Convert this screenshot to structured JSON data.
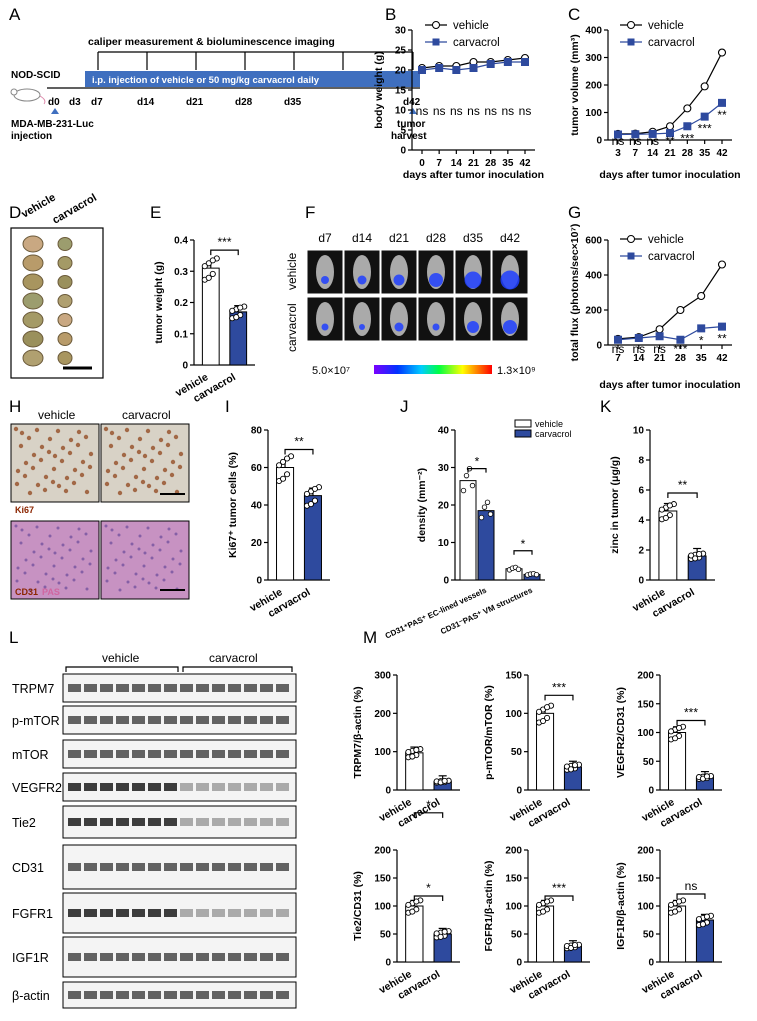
{
  "colors": {
    "vehicle": "#ffffff",
    "carvacrol": "#2e4a9e",
    "edge": "#000000",
    "schedule_bar": "#3f6fbf"
  },
  "panel_labels": [
    "A",
    "B",
    "C",
    "D",
    "E",
    "F",
    "G",
    "H",
    "I",
    "J",
    "K",
    "L",
    "M"
  ],
  "schedule": {
    "mouse": "NOD-SCID",
    "days": [
      "d0",
      "d3",
      "d7",
      "d14",
      "d21",
      "d28",
      "d35",
      "d42"
    ],
    "top_text": "caliper measurement & bioluminescence imaging",
    "bar_text": "i.p. injection of vehicle or 50 mg/kg carvacrol daily",
    "start_text": "MDA-MB-231-Luc",
    "start_text2": "injection",
    "end_text": "tumor",
    "end_text2": "harvest"
  },
  "photo_D": {
    "left_label": "vehicle",
    "right_label": "carvacrol"
  },
  "imaging_F": {
    "days": [
      "d7",
      "d14",
      "d21",
      "d28",
      "d35",
      "d42"
    ],
    "row1": "vehicle",
    "row2": "carvacrol",
    "scale_min": "5.0×10⁷",
    "scale_max": "1.3×10⁹"
  },
  "histology_H": {
    "left": "vehicle",
    "right": "carvacrol",
    "stain1": "Ki67",
    "stain2a": "CD31",
    "stain2b": "PAS"
  },
  "blot_L": {
    "group1": "vehicle",
    "group2": "carvacrol",
    "rows": [
      "TRPM7",
      "p-mTOR",
      "mTOR",
      "VEGFR2",
      "Tie2",
      "CD31",
      "FGFR1",
      "IGF1R",
      "β-actin"
    ]
  },
  "chart_data": [
    {
      "id": "B",
      "type": "line",
      "ylabel": "body weight (g)",
      "xlabel": "days after tumor inoculation",
      "x": [
        0,
        7,
        14,
        21,
        28,
        35,
        42
      ],
      "ylim": [
        0,
        30
      ],
      "yticks": [
        0,
        5,
        10,
        15,
        20,
        25,
        30
      ],
      "series": [
        {
          "name": "vehicle",
          "values": [
            20.5,
            21,
            21,
            22,
            22,
            22.5,
            23
          ]
        },
        {
          "name": "carvacrol",
          "values": [
            20,
            20.5,
            20,
            20.5,
            21.5,
            22,
            22
          ]
        }
      ],
      "annotations": [
        "ns",
        "ns",
        "ns",
        "ns",
        "ns",
        "ns",
        "ns"
      ]
    },
    {
      "id": "C",
      "type": "line",
      "ylabel": "tumor volume (mm³)",
      "xlabel": "days after tumor inoculation",
      "x": [
        3,
        7,
        14,
        21,
        28,
        35,
        42
      ],
      "ylim": [
        0,
        400
      ],
      "yticks": [
        0,
        100,
        200,
        300,
        400
      ],
      "series": [
        {
          "name": "vehicle",
          "values": [
            22,
            23,
            30,
            50,
            115,
            195,
            318
          ]
        },
        {
          "name": "carvacrol",
          "values": [
            20,
            21,
            22,
            25,
            50,
            85,
            135
          ]
        }
      ],
      "annotations": [
        "ns",
        "ns",
        "ns",
        "**",
        "***",
        "***",
        "**"
      ]
    },
    {
      "id": "E",
      "type": "bar",
      "ylabel": "tumor weight (g)",
      "categories": [
        "vehicle",
        "carvacrol"
      ],
      "values": [
        0.31,
        0.17
      ],
      "ylim": [
        0,
        0.4
      ],
      "yticks": [
        0,
        0.1,
        0.2,
        0.3,
        0.4
      ],
      "significance": "***"
    },
    {
      "id": "G",
      "type": "line",
      "ylabel": "total flux (photons/sec×10⁷)",
      "xlabel": "days after tumor inoculation",
      "x": [
        7,
        14,
        21,
        28,
        35,
        42
      ],
      "ylim": [
        0,
        600
      ],
      "yticks": [
        0,
        200,
        400,
        600
      ],
      "series": [
        {
          "name": "vehicle",
          "values": [
            35,
            45,
            90,
            200,
            280,
            460
          ]
        },
        {
          "name": "carvacrol",
          "values": [
            30,
            40,
            50,
            30,
            95,
            105
          ]
        }
      ],
      "annotations": [
        "ns",
        "ns",
        "ns",
        "***",
        "*",
        "**"
      ]
    },
    {
      "id": "I",
      "type": "bar",
      "ylabel": "Ki67⁺ tumor cells (%)",
      "categories": [
        "vehicle",
        "carvacrol"
      ],
      "values": [
        60,
        45
      ],
      "ylim": [
        0,
        80
      ],
      "yticks": [
        0,
        20,
        40,
        60,
        80
      ],
      "significance": "**"
    },
    {
      "id": "J",
      "type": "bar",
      "ylabel": "density (mm⁻²)",
      "categories": [
        "CD31⁺PAS⁺ EC-lined vessels",
        "CD31⁻PAS⁺ VM structures"
      ],
      "series": [
        {
          "name": "vehicle",
          "values": [
            26.5,
            3
          ]
        },
        {
          "name": "carvacrol",
          "values": [
            18.5,
            1.5
          ]
        }
      ],
      "ylim": [
        0,
        40
      ],
      "yticks": [
        0,
        10,
        20,
        30,
        40
      ],
      "significance": [
        "*",
        "*"
      ]
    },
    {
      "id": "K",
      "type": "bar",
      "ylabel": "zinc in tumor (μg/g)",
      "categories": [
        "vehicle",
        "carvacrol"
      ],
      "values": [
        4.6,
        1.6
      ],
      "ylim": [
        0,
        10
      ],
      "yticks": [
        0,
        2,
        4,
        6,
        8,
        10
      ],
      "significance": "**"
    },
    {
      "id": "M1",
      "type": "bar",
      "ylabel": "TRPM7/β-actin (%)",
      "categories": [
        "vehicle",
        "carvacrol"
      ],
      "values": [
        97,
        22
      ],
      "ylim": [
        0,
        300
      ],
      "yticks": [
        0,
        100,
        200,
        300
      ],
      "significance": "*"
    },
    {
      "id": "M2",
      "type": "bar",
      "ylabel": "p-mTOR/mTOR (%)",
      "categories": [
        "vehicle",
        "carvacrol"
      ],
      "values": [
        100,
        30
      ],
      "ylim": [
        0,
        150
      ],
      "yticks": [
        0,
        50,
        100,
        150
      ],
      "significance": "***"
    },
    {
      "id": "M3",
      "type": "bar",
      "ylabel": "VEGFR2/CD31 (%)",
      "categories": [
        "vehicle",
        "carvacrol"
      ],
      "values": [
        100,
        22
      ],
      "ylim": [
        0,
        200
      ],
      "yticks": [
        0,
        50,
        100,
        150,
        200
      ],
      "significance": "***"
    },
    {
      "id": "M4",
      "type": "bar",
      "ylabel": "Tie2/CD31 (%)",
      "categories": [
        "vehicle",
        "carvacrol"
      ],
      "values": [
        100,
        50
      ],
      "ylim": [
        0,
        200
      ],
      "yticks": [
        0,
        50,
        100,
        150,
        200
      ],
      "significance": "*"
    },
    {
      "id": "M5",
      "type": "bar",
      "ylabel": "FGFR1/β-actin (%)",
      "categories": [
        "vehicle",
        "carvacrol"
      ],
      "values": [
        100,
        28
      ],
      "ylim": [
        0,
        200
      ],
      "yticks": [
        0,
        50,
        100,
        150,
        200
      ],
      "significance": "***"
    },
    {
      "id": "M6",
      "type": "bar",
      "ylabel": "IGF1R/β-actin (%)",
      "categories": [
        "vehicle",
        "carvacrol"
      ],
      "values": [
        100,
        75
      ],
      "ylim": [
        0,
        200
      ],
      "yticks": [
        0,
        50,
        100,
        150,
        200
      ],
      "significance": "ns"
    }
  ]
}
